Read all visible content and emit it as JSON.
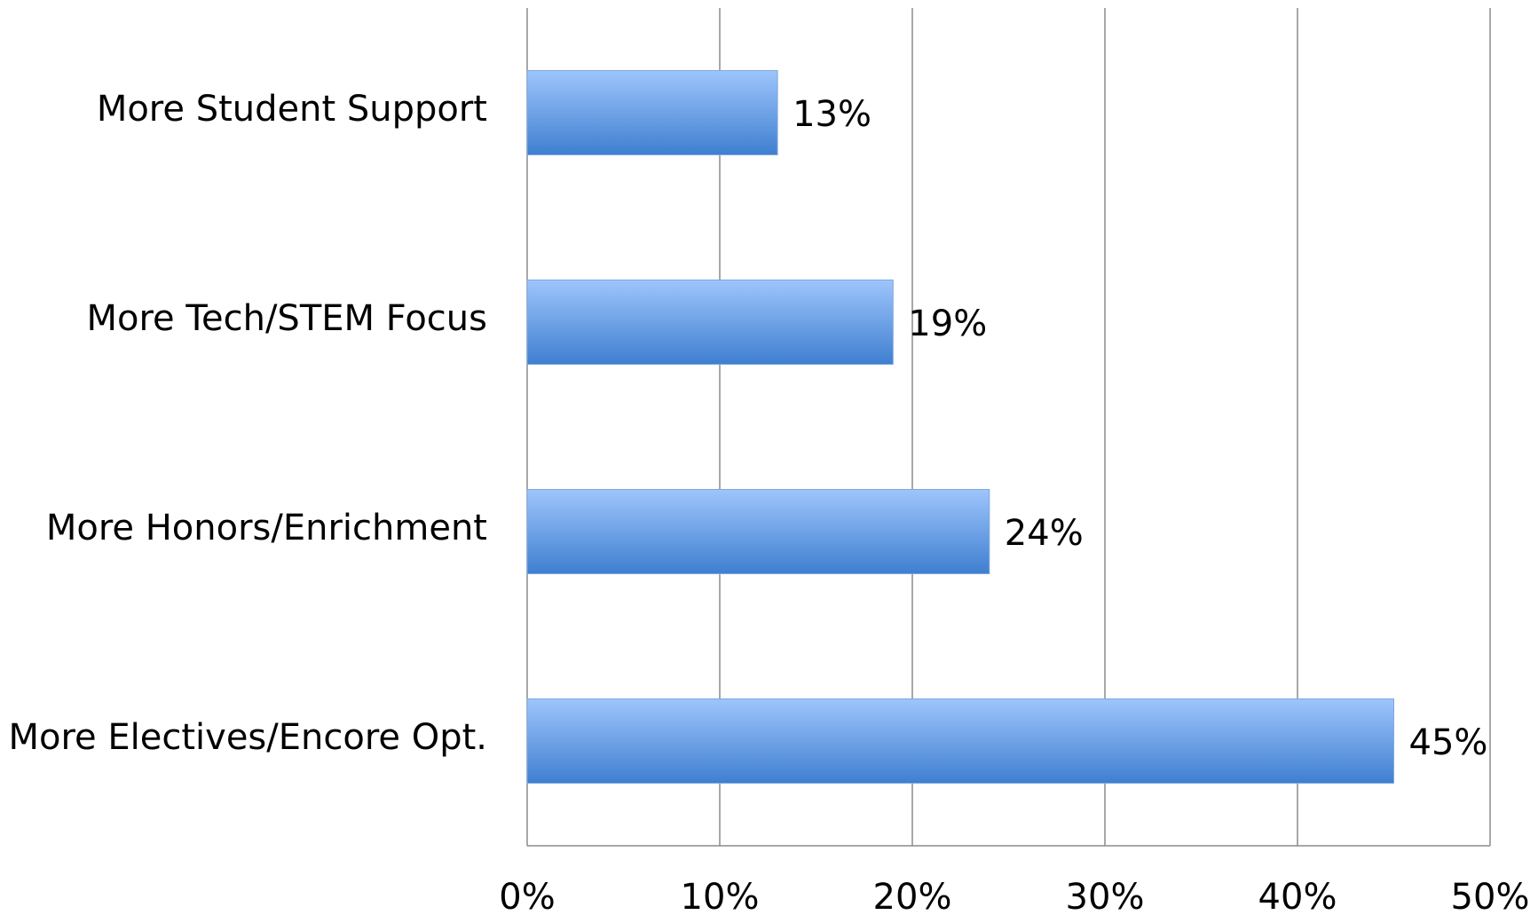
{
  "chart_data": {
    "type": "hbar",
    "categories": [
      "More Student Support",
      "More Tech/STEM Focus",
      "More Honors/Enrichment",
      "More Electives/Encore Opt."
    ],
    "values": [
      13,
      19,
      24,
      45
    ],
    "value_labels": [
      "13%",
      "19%",
      "24%",
      "45%"
    ],
    "color": "#3f7fd0",
    "xlim": [
      0,
      50
    ],
    "xticks": [
      {
        "value": 0,
        "label": "0%"
      },
      {
        "value": 10,
        "label": "10%"
      },
      {
        "value": 20,
        "label": "20%"
      },
      {
        "value": 30,
        "label": "30%"
      },
      {
        "value": 40,
        "label": "40%"
      },
      {
        "value": 50,
        "label": "50%"
      }
    ],
    "grid": true
  }
}
